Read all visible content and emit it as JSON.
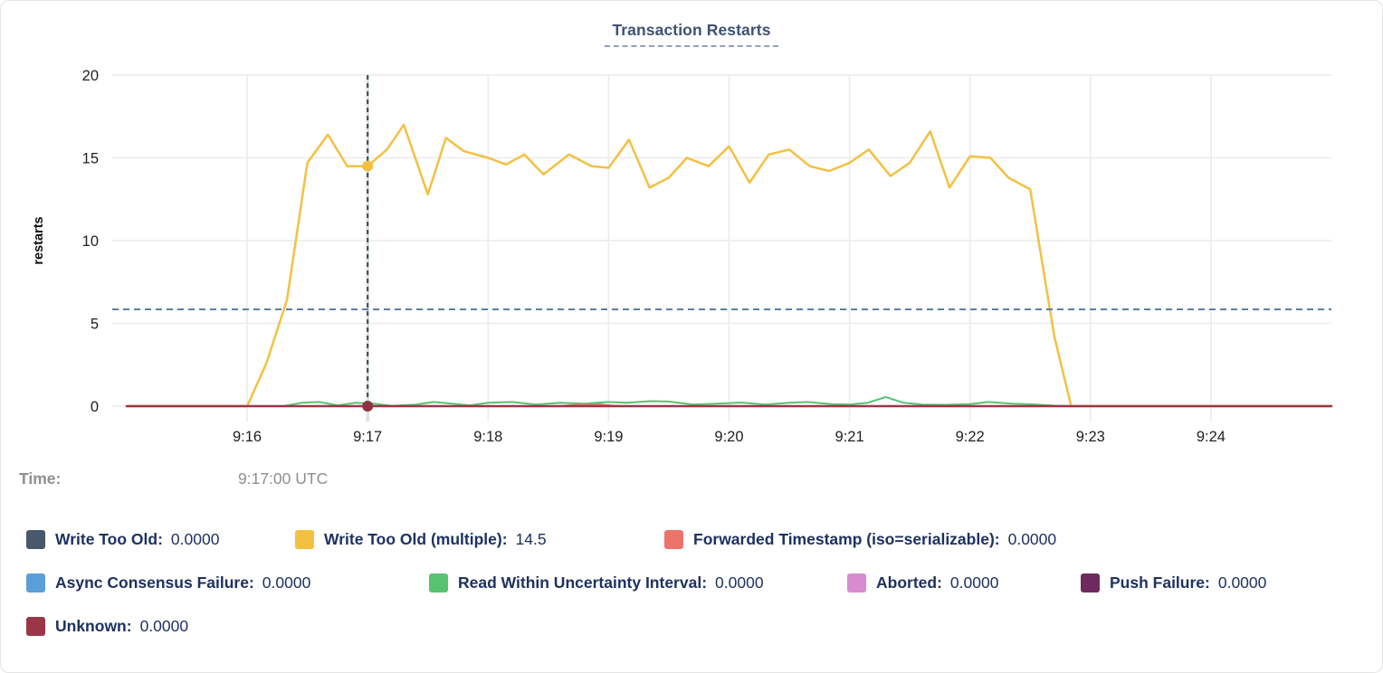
{
  "tooltip": {
    "time_label": "Time:",
    "time_value": "9:17:00 UTC"
  },
  "legend": {
    "rows": [
      [
        {
          "label": "Write Too Old:",
          "value": "0.0000",
          "color": "#48586d"
        },
        {
          "label": "Write Too Old (multiple):",
          "value": "14.5",
          "color": "#f4c041"
        },
        {
          "label": "Forwarded Timestamp (iso=serializable):",
          "value": "0.0000",
          "color": "#ec736c"
        }
      ],
      [
        {
          "label": "Async Consensus Failure:",
          "value": "0.0000",
          "color": "#5b9fd8"
        },
        {
          "label": "Read Within Uncertainty Interval:",
          "value": "0.0000",
          "color": "#57c271"
        },
        {
          "label": "Aborted:",
          "value": "0.0000",
          "color": "#d88bce"
        },
        {
          "label": "Push Failure:",
          "value": "0.0000",
          "color": "#6e2a5d"
        }
      ],
      [
        {
          "label": "Unknown:",
          "value": "0.0000",
          "color": "#9b3648"
        }
      ]
    ]
  },
  "chart_data": {
    "type": "line",
    "title": "Transaction Restarts",
    "xlabel": "",
    "ylabel": "restarts",
    "ylim": [
      0,
      20
    ],
    "grid": true,
    "x_domain_minutes": [
      14.88,
      25.0
    ],
    "y_ticks": [
      0,
      5,
      10,
      15,
      20
    ],
    "x_ticks": [
      {
        "t": 16,
        "label": "9:16"
      },
      {
        "t": 17,
        "label": "9:17"
      },
      {
        "t": 18,
        "label": "9:18"
      },
      {
        "t": 19,
        "label": "9:19"
      },
      {
        "t": 20,
        "label": "9:20"
      },
      {
        "t": 21,
        "label": "9:21"
      },
      {
        "t": 22,
        "label": "9:22"
      },
      {
        "t": 23,
        "label": "9:23"
      },
      {
        "t": 24,
        "label": "9:24"
      }
    ],
    "grid_color": "#ececec",
    "axis_text_color": "#1f1f1f",
    "crosshair": {
      "t": 17,
      "time": "9:17:00 UTC",
      "hline_value": 5.85,
      "vline_color": "#2e4d63",
      "hline_color": "#5e7fa1",
      "band_color": "#e0e0e0",
      "dots": [
        {
          "series": "Write Too Old (multiple)",
          "value": 14.5,
          "color": "#f4c041"
        },
        {
          "series": "Unknown",
          "value": 0,
          "color": "#8e3341"
        }
      ]
    },
    "series": [
      {
        "name": "Write Too Old",
        "color": "#48586d",
        "width": 2,
        "points": [
          [
            15.0,
            0
          ],
          [
            25.0,
            0
          ]
        ]
      },
      {
        "name": "Async Consensus Failure",
        "color": "#5b9fd8",
        "width": 2,
        "points": [
          [
            15.0,
            0
          ],
          [
            25.0,
            0
          ]
        ]
      },
      {
        "name": "Aborted",
        "color": "#d88bce",
        "width": 2,
        "points": [
          [
            15.0,
            0
          ],
          [
            25.0,
            0
          ]
        ]
      },
      {
        "name": "Push Failure",
        "color": "#6e2a5d",
        "width": 2,
        "points": [
          [
            15.0,
            0
          ],
          [
            25.0,
            0
          ]
        ]
      },
      {
        "name": "Forwarded Timestamp (iso=serializable)",
        "color": "#ec736c",
        "width": 2,
        "points": [
          [
            15.0,
            0
          ],
          [
            18.6,
            0
          ],
          [
            18.75,
            0.1
          ],
          [
            18.9,
            0.12
          ],
          [
            19.05,
            0.02
          ],
          [
            19.2,
            0
          ],
          [
            25.0,
            0
          ]
        ]
      },
      {
        "name": "Read Within Uncertainty Interval",
        "color": "#57c271",
        "width": 2,
        "points": [
          [
            15.0,
            0
          ],
          [
            16.3,
            0
          ],
          [
            16.45,
            0.2
          ],
          [
            16.6,
            0.25
          ],
          [
            16.75,
            0.05
          ],
          [
            16.9,
            0.2
          ],
          [
            17.05,
            0.15
          ],
          [
            17.2,
            0.02
          ],
          [
            17.4,
            0.1
          ],
          [
            17.55,
            0.25
          ],
          [
            17.7,
            0.15
          ],
          [
            17.85,
            0.05
          ],
          [
            18.0,
            0.2
          ],
          [
            18.2,
            0.25
          ],
          [
            18.4,
            0.1
          ],
          [
            18.6,
            0.2
          ],
          [
            18.8,
            0.15
          ],
          [
            19.0,
            0.25
          ],
          [
            19.15,
            0.2
          ],
          [
            19.35,
            0.3
          ],
          [
            19.5,
            0.28
          ],
          [
            19.7,
            0.1
          ],
          [
            19.9,
            0.15
          ],
          [
            20.1,
            0.22
          ],
          [
            20.3,
            0.1
          ],
          [
            20.5,
            0.2
          ],
          [
            20.65,
            0.25
          ],
          [
            20.85,
            0.12
          ],
          [
            21.0,
            0.1
          ],
          [
            21.15,
            0.2
          ],
          [
            21.3,
            0.55
          ],
          [
            21.45,
            0.2
          ],
          [
            21.6,
            0.1
          ],
          [
            21.8,
            0.08
          ],
          [
            22.0,
            0.12
          ],
          [
            22.15,
            0.25
          ],
          [
            22.35,
            0.15
          ],
          [
            22.55,
            0.1
          ],
          [
            22.7,
            0.03
          ],
          [
            22.85,
            0
          ],
          [
            25.0,
            0
          ]
        ]
      },
      {
        "name": "Write Too Old (multiple)",
        "color": "#f4c041",
        "width": 2.5,
        "points": [
          [
            15.0,
            0
          ],
          [
            15.8,
            0
          ],
          [
            16.0,
            0
          ],
          [
            16.16,
            2.6
          ],
          [
            16.33,
            6.4
          ],
          [
            16.5,
            14.7
          ],
          [
            16.67,
            16.4
          ],
          [
            16.83,
            14.5
          ],
          [
            17.0,
            14.5
          ],
          [
            17.16,
            15.5
          ],
          [
            17.3,
            17.0
          ],
          [
            17.5,
            12.8
          ],
          [
            17.65,
            16.2
          ],
          [
            17.8,
            15.4
          ],
          [
            18.0,
            15.0
          ],
          [
            18.15,
            14.6
          ],
          [
            18.3,
            15.2
          ],
          [
            18.46,
            14.0
          ],
          [
            18.67,
            15.2
          ],
          [
            18.86,
            14.5
          ],
          [
            19.0,
            14.4
          ],
          [
            19.17,
            16.1
          ],
          [
            19.34,
            13.2
          ],
          [
            19.5,
            13.8
          ],
          [
            19.65,
            15.0
          ],
          [
            19.83,
            14.5
          ],
          [
            20.0,
            15.7
          ],
          [
            20.17,
            13.5
          ],
          [
            20.33,
            15.2
          ],
          [
            20.5,
            15.5
          ],
          [
            20.67,
            14.5
          ],
          [
            20.83,
            14.2
          ],
          [
            21.0,
            14.7
          ],
          [
            21.16,
            15.5
          ],
          [
            21.34,
            13.9
          ],
          [
            21.5,
            14.7
          ],
          [
            21.67,
            16.6
          ],
          [
            21.83,
            13.2
          ],
          [
            22.0,
            15.1
          ],
          [
            22.17,
            15.0
          ],
          [
            22.32,
            13.8
          ],
          [
            22.5,
            13.1
          ],
          [
            22.7,
            4.2
          ],
          [
            22.84,
            0
          ],
          [
            23.0,
            0
          ],
          [
            25.0,
            0
          ]
        ]
      },
      {
        "name": "Unknown",
        "color": "#9b3648",
        "width": 2.5,
        "points": [
          [
            15.0,
            0
          ],
          [
            25.0,
            0
          ]
        ]
      }
    ]
  }
}
